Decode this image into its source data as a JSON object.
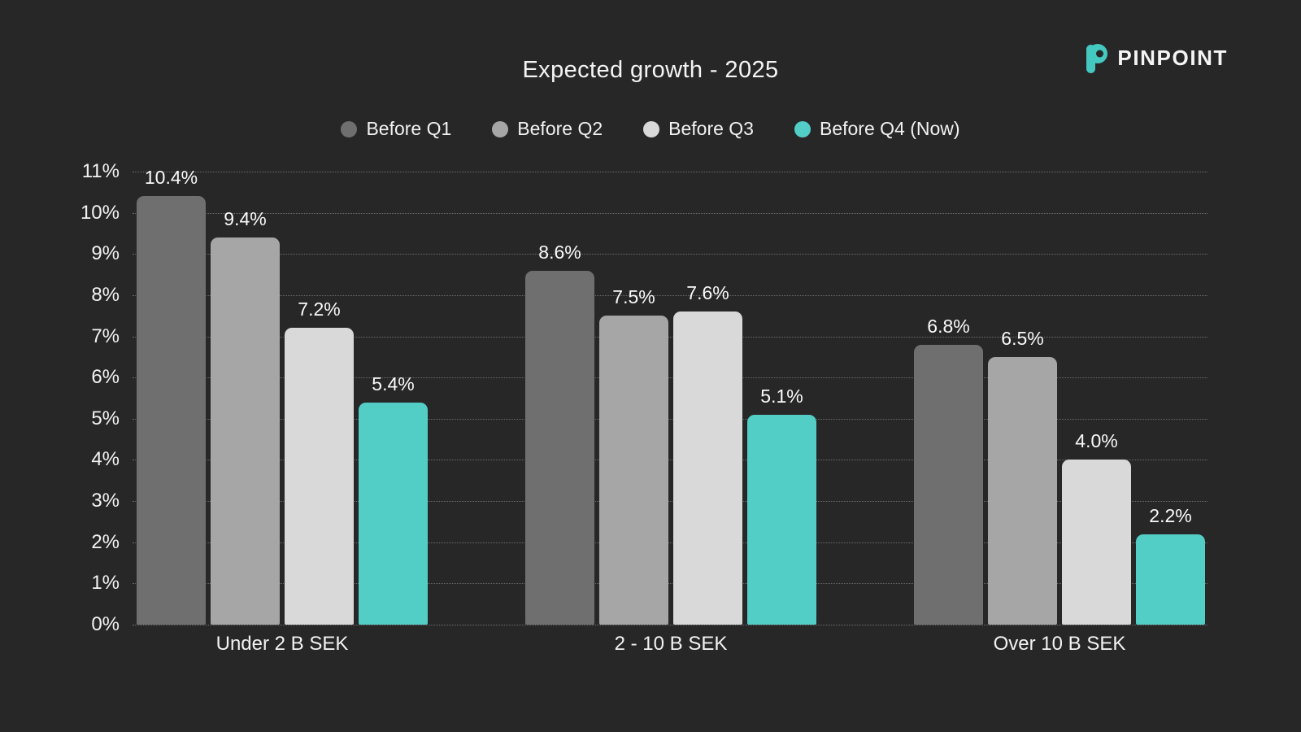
{
  "page": {
    "background_color": "#272727",
    "text_color": "#f2f2f2"
  },
  "header": {
    "title": "Expected growth - 2025"
  },
  "brand": {
    "name": "PINPOINT",
    "icon": "pinpoint-p-icon",
    "accent_color": "#45c8c0"
  },
  "chart_data": {
    "type": "bar",
    "title": "Expected growth - 2025",
    "categories": [
      "Under 2 B SEK",
      "2 - 10 B SEK",
      "Over 10 B SEK"
    ],
    "series": [
      {
        "name": "Before Q1",
        "color": "#6f6f6f",
        "values": [
          10.4,
          8.6,
          6.8
        ]
      },
      {
        "name": "Before Q2",
        "color": "#a6a6a6",
        "values": [
          9.4,
          7.5,
          6.5
        ]
      },
      {
        "name": "Before Q3",
        "color": "#d9d9d9",
        "values": [
          7.2,
          7.6,
          4.0
        ]
      },
      {
        "name": "Before Q4 (Now)",
        "color": "#53cec7",
        "values": [
          5.4,
          5.1,
          2.2
        ]
      }
    ],
    "value_label_suffix": "%",
    "ylim": [
      0,
      11
    ],
    "yticks": [
      {
        "value": 0,
        "label": "0%"
      },
      {
        "value": 1,
        "label": "1%"
      },
      {
        "value": 2,
        "label": "2%"
      },
      {
        "value": 3,
        "label": "3%"
      },
      {
        "value": 4,
        "label": "4%"
      },
      {
        "value": 5,
        "label": "5%"
      },
      {
        "value": 6,
        "label": "6%"
      },
      {
        "value": 7,
        "label": "7%"
      },
      {
        "value": 8,
        "label": "8%"
      },
      {
        "value": 9,
        "label": "9%"
      },
      {
        "value": 10,
        "label": "10%"
      },
      {
        "value": 11,
        "label": "11%"
      }
    ],
    "grid": true,
    "gridline_style": "dotted",
    "legend_position": "top",
    "xlabel": "",
    "ylabel": ""
  }
}
